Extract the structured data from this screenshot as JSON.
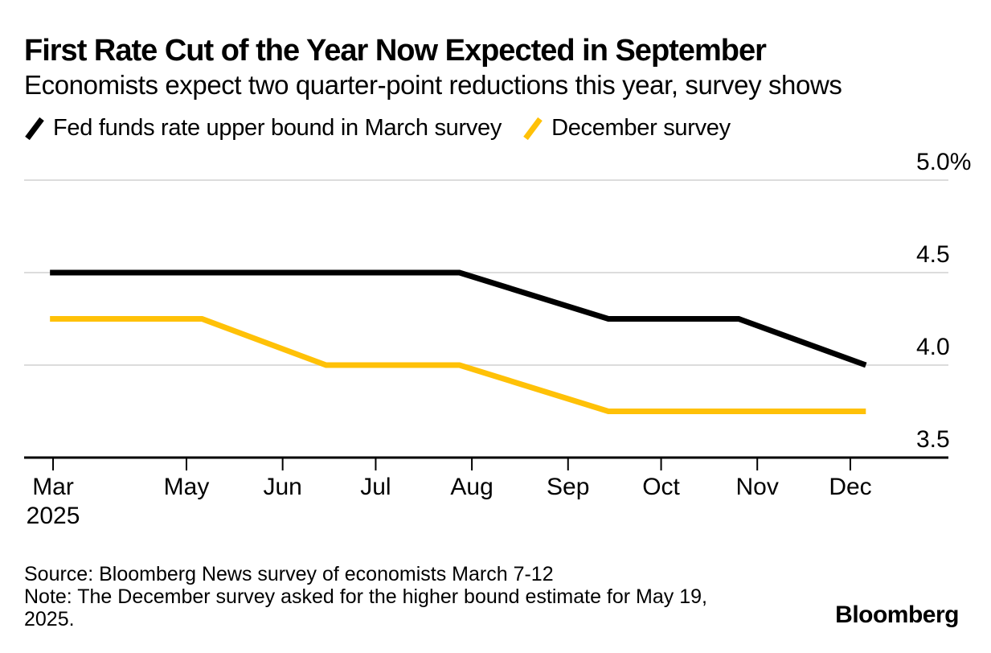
{
  "header": {
    "title": "First Rate Cut of the Year Now Expected in September",
    "subtitle": "Economists expect two quarter-point reductions this year, survey shows"
  },
  "legend": [
    {
      "label": "Fed funds rate upper bound in March survey",
      "color": "#000000"
    },
    {
      "label": "December survey",
      "color": "#FFC107"
    }
  ],
  "footer": {
    "source": "Source: Bloomberg News survey of economists March 7-12",
    "note": "Note: The December survey asked for the higher bound estimate for May 19, 2025.",
    "logo": "Bloomberg"
  },
  "chart_data": {
    "type": "line",
    "title": "First Rate Cut of the Year Now Expected in September",
    "x_unit": "days since 2025-03-01",
    "y_unit": "percent",
    "ylim": [
      3.5,
      5.0
    ],
    "grid": "horizontal",
    "legend_position": "top-left",
    "yticks": [
      {
        "value": 5.0,
        "label": "5.0%"
      },
      {
        "value": 4.5,
        "label": "4.5"
      },
      {
        "value": 4.0,
        "label": "4.0"
      },
      {
        "value": 3.5,
        "label": "3.5"
      }
    ],
    "xticks": [
      {
        "day": 18,
        "label": "Mar",
        "sublabel": "2025"
      },
      {
        "day": 61,
        "label": "May"
      },
      {
        "day": 92,
        "label": "Jun"
      },
      {
        "day": 122,
        "label": "Jul"
      },
      {
        "day": 153,
        "label": "Aug"
      },
      {
        "day": 184,
        "label": "Sep"
      },
      {
        "day": 214,
        "label": "Oct"
      },
      {
        "day": 245,
        "label": "Nov"
      },
      {
        "day": 275,
        "label": "Dec"
      }
    ],
    "series": [
      {
        "name": "Fed funds rate upper bound in March survey",
        "color": "#000000",
        "points": [
          {
            "day": 17,
            "value": 4.5
          },
          {
            "day": 149,
            "value": 4.5
          },
          {
            "day": 197,
            "value": 4.25
          },
          {
            "day": 239,
            "value": 4.25
          },
          {
            "day": 280,
            "value": 4.0
          }
        ]
      },
      {
        "name": "December survey",
        "color": "#FFC107",
        "points": [
          {
            "day": 17,
            "value": 4.25
          },
          {
            "day": 66,
            "value": 4.25
          },
          {
            "day": 106,
            "value": 4.0
          },
          {
            "day": 149,
            "value": 4.0
          },
          {
            "day": 197,
            "value": 3.75
          },
          {
            "day": 280,
            "value": 3.75
          }
        ]
      }
    ],
    "style": {
      "grid_color": "#dcdcdc",
      "axis_color": "#000000",
      "line_width": 7
    }
  }
}
